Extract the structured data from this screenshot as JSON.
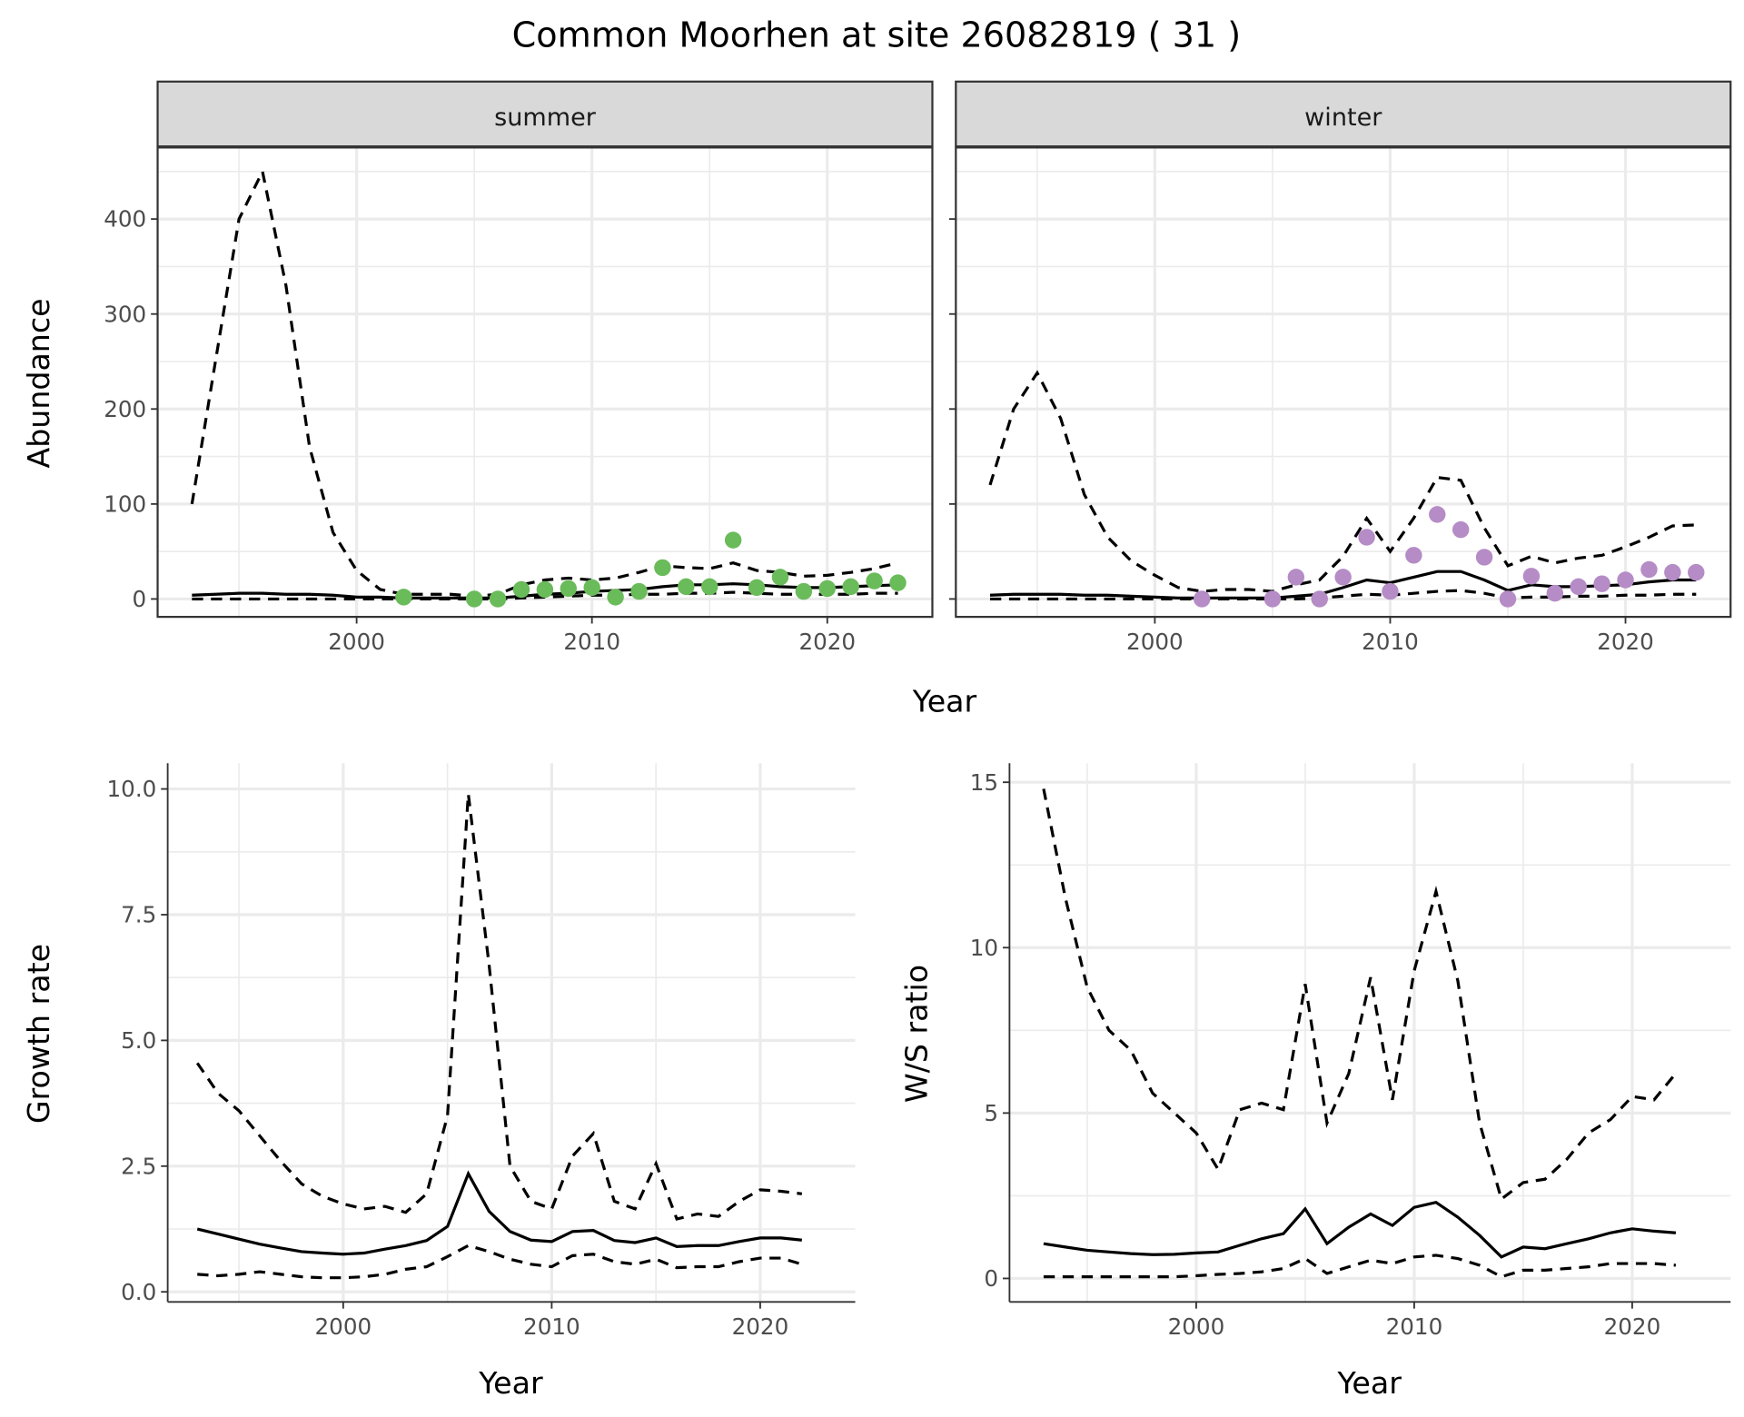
{
  "title": "Common Moorhen at site 26082819 ( 31 )",
  "colors": {
    "summer_points": "#6abb5a",
    "winter_points": "#b58cc6",
    "line": "#000000",
    "grid": "#ebebeb",
    "strip": "#d9d9d9"
  },
  "chart_data": [
    {
      "type": "line+scatter",
      "panel": "summer",
      "strip_label": "summer",
      "ylabel": "Abundance",
      "xlabel": "Year",
      "shared_xlabel": "Year",
      "ylim": [
        0,
        470
      ],
      "xlim": [
        1992,
        2024
      ],
      "xticks": [
        2000,
        2010,
        2020
      ],
      "yticks": [
        0,
        100,
        200,
        300,
        400
      ],
      "x": [
        1993,
        1994,
        1995,
        1996,
        1997,
        1998,
        1999,
        2000,
        2001,
        2002,
        2003,
        2004,
        2005,
        2006,
        2007,
        2008,
        2009,
        2010,
        2011,
        2012,
        2013,
        2014,
        2015,
        2016,
        2017,
        2018,
        2019,
        2020,
        2021,
        2022,
        2023
      ],
      "series": [
        {
          "name": "upper",
          "style": "dashed",
          "values": [
            100,
            250,
            400,
            450,
            330,
            160,
            70,
            30,
            10,
            5,
            5,
            5,
            3,
            5,
            15,
            20,
            22,
            20,
            22,
            28,
            35,
            33,
            32,
            38,
            30,
            28,
            24,
            25,
            28,
            32,
            38
          ]
        },
        {
          "name": "estimate",
          "style": "solid",
          "values": [
            4,
            5,
            6,
            6,
            5,
            5,
            4,
            2,
            2,
            1,
            1,
            1,
            1,
            1,
            3,
            5,
            6,
            8,
            9,
            10,
            13,
            15,
            15,
            16,
            15,
            13,
            12,
            12,
            13,
            14,
            15
          ]
        },
        {
          "name": "lower",
          "style": "dashed",
          "values": [
            0,
            0,
            0,
            0,
            0,
            0,
            0,
            0,
            0,
            0,
            0,
            0,
            0,
            0,
            1,
            2,
            3,
            4,
            4,
            5,
            5,
            6,
            6,
            7,
            6,
            5,
            5,
            5,
            5,
            6,
            6
          ]
        }
      ],
      "points": {
        "x": [
          2002,
          2005,
          2006,
          2007,
          2008,
          2009,
          2010,
          2011,
          2012,
          2013,
          2014,
          2015,
          2016,
          2017,
          2018,
          2019,
          2020,
          2021,
          2022,
          2023
        ],
        "y": [
          2,
          0,
          0,
          10,
          10,
          11,
          12,
          2,
          8,
          33,
          13,
          13,
          62,
          12,
          23,
          8,
          11,
          13,
          19,
          17
        ]
      }
    },
    {
      "type": "line+scatter",
      "panel": "winter",
      "strip_label": "winter",
      "ylim": [
        0,
        470
      ],
      "xlim": [
        1992,
        2024
      ],
      "xticks": [
        2000,
        2010,
        2020
      ],
      "x": [
        1993,
        1994,
        1995,
        1996,
        1997,
        1998,
        1999,
        2000,
        2001,
        2002,
        2003,
        2004,
        2005,
        2006,
        2007,
        2008,
        2009,
        2010,
        2011,
        2012,
        2013,
        2014,
        2015,
        2016,
        2017,
        2018,
        2019,
        2020,
        2021,
        2022,
        2023
      ],
      "series": [
        {
          "name": "upper",
          "style": "dashed",
          "values": [
            120,
            200,
            238,
            190,
            110,
            65,
            40,
            25,
            12,
            8,
            10,
            10,
            8,
            15,
            20,
            45,
            85,
            50,
            85,
            128,
            125,
            75,
            35,
            45,
            38,
            43,
            46,
            55,
            65,
            77,
            78
          ]
        },
        {
          "name": "estimate",
          "style": "solid",
          "values": [
            4,
            5,
            5,
            5,
            4,
            4,
            3,
            2,
            1,
            1,
            1,
            1,
            1,
            3,
            5,
            12,
            20,
            17,
            23,
            29,
            29,
            20,
            9,
            15,
            13,
            13,
            14,
            15,
            18,
            20,
            20
          ]
        },
        {
          "name": "lower",
          "style": "dashed",
          "values": [
            0,
            0,
            0,
            0,
            0,
            0,
            0,
            0,
            0,
            0,
            0,
            0,
            0,
            0,
            1,
            3,
            5,
            4,
            6,
            8,
            9,
            6,
            1,
            2,
            2,
            3,
            3,
            4,
            4,
            5,
            5
          ]
        }
      ],
      "points": {
        "x": [
          2002,
          2005,
          2006,
          2007,
          2008,
          2009,
          2010,
          2011,
          2012,
          2013,
          2014,
          2015,
          2016,
          2017,
          2018,
          2019,
          2020,
          2021,
          2022,
          2023
        ],
        "y": [
          0,
          0,
          23,
          0,
          23,
          65,
          8,
          46,
          89,
          73,
          44,
          0,
          24,
          6,
          13,
          16,
          20,
          31,
          28,
          28
        ]
      }
    },
    {
      "type": "line",
      "panel": "growth",
      "ylabel": "Growth rate",
      "xlabel": "Year",
      "ylim": [
        -0.2,
        10.4
      ],
      "xlim": [
        1991.5,
        2023.5
      ],
      "xticks": [
        2000,
        2010,
        2020
      ],
      "yticks": [
        0,
        2.5,
        5,
        7.5,
        10
      ],
      "ytick_labels": [
        "0.0",
        "2.5",
        "5.0",
        "7.5",
        "10.0"
      ],
      "x": [
        1993,
        1994,
        1995,
        1996,
        1997,
        1998,
        1999,
        2000,
        2001,
        2002,
        2003,
        2004,
        2005,
        2006,
        2007,
        2008,
        2009,
        2010,
        2011,
        2012,
        2013,
        2014,
        2015,
        2016,
        2017,
        2018,
        2019,
        2020,
        2021,
        2022
      ],
      "series": [
        {
          "name": "upper",
          "style": "dashed",
          "values": [
            4.55,
            3.95,
            3.6,
            3.1,
            2.6,
            2.15,
            1.9,
            1.75,
            1.65,
            1.7,
            1.58,
            1.95,
            3.5,
            9.9,
            6.5,
            2.5,
            1.8,
            1.65,
            2.7,
            3.15,
            1.8,
            1.65,
            2.55,
            1.45,
            1.55,
            1.5,
            1.8,
            2.03,
            2.0,
            1.95
          ]
        },
        {
          "name": "estimate",
          "style": "solid",
          "values": [
            1.25,
            1.15,
            1.05,
            0.95,
            0.87,
            0.8,
            0.77,
            0.75,
            0.77,
            0.85,
            0.92,
            1.02,
            1.3,
            2.35,
            1.6,
            1.2,
            1.03,
            1.0,
            1.2,
            1.22,
            1.02,
            0.98,
            1.07,
            0.9,
            0.92,
            0.92,
            1.0,
            1.07,
            1.07,
            1.03
          ]
        },
        {
          "name": "lower",
          "style": "dashed",
          "values": [
            0.35,
            0.32,
            0.35,
            0.4,
            0.35,
            0.3,
            0.28,
            0.28,
            0.3,
            0.35,
            0.45,
            0.5,
            0.7,
            0.92,
            0.8,
            0.65,
            0.55,
            0.5,
            0.72,
            0.75,
            0.6,
            0.55,
            0.65,
            0.48,
            0.5,
            0.5,
            0.6,
            0.67,
            0.67,
            0.55
          ]
        }
      ]
    },
    {
      "type": "line",
      "panel": "ws",
      "ylabel": "W/S ratio",
      "xlabel": "Year",
      "ylim": [
        -0.7,
        15.6
      ],
      "xlim": [
        1991.5,
        2024.5
      ],
      "xticks": [
        2000,
        2010,
        2020
      ],
      "yticks": [
        0,
        5,
        10,
        15
      ],
      "ytick_labels": [
        "0",
        "5",
        "10",
        "15"
      ],
      "x": [
        1993,
        1994,
        1995,
        1996,
        1997,
        1998,
        1999,
        2000,
        2001,
        2002,
        2003,
        2004,
        2005,
        2006,
        2007,
        2008,
        2009,
        2010,
        2011,
        2012,
        2013,
        2014,
        2015,
        2016,
        2017,
        2018,
        2019,
        2020,
        2021,
        2022
      ],
      "series": [
        {
          "name": "upper",
          "style": "dashed",
          "values": [
            14.8,
            11.5,
            8.8,
            7.5,
            6.9,
            5.6,
            5.0,
            4.4,
            3.3,
            5.1,
            5.3,
            5.1,
            8.9,
            4.7,
            6.2,
            9.1,
            5.4,
            9.3,
            11.7,
            9.0,
            4.7,
            2.4,
            2.9,
            3.0,
            3.6,
            4.4,
            4.8,
            5.5,
            5.4,
            6.2
          ]
        },
        {
          "name": "estimate",
          "style": "solid",
          "values": [
            1.05,
            0.95,
            0.85,
            0.8,
            0.75,
            0.72,
            0.73,
            0.77,
            0.8,
            1.0,
            1.2,
            1.35,
            2.1,
            1.05,
            1.55,
            1.95,
            1.6,
            2.15,
            2.3,
            1.85,
            1.3,
            0.65,
            0.95,
            0.9,
            1.05,
            1.2,
            1.38,
            1.5,
            1.43,
            1.38
          ]
        },
        {
          "name": "lower",
          "style": "dashed",
          "values": [
            0.05,
            0.05,
            0.05,
            0.05,
            0.05,
            0.05,
            0.05,
            0.08,
            0.12,
            0.15,
            0.2,
            0.3,
            0.6,
            0.15,
            0.35,
            0.55,
            0.45,
            0.65,
            0.7,
            0.6,
            0.4,
            0.05,
            0.25,
            0.25,
            0.3,
            0.35,
            0.45,
            0.45,
            0.45,
            0.4
          ]
        }
      ]
    }
  ]
}
